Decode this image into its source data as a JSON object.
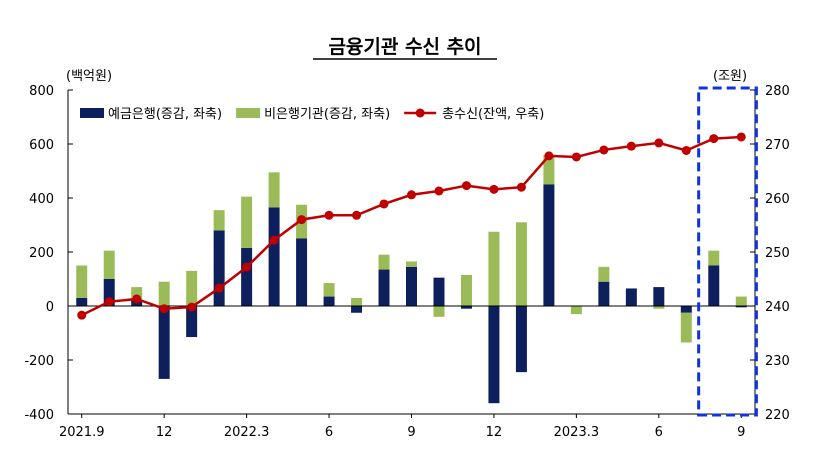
{
  "chart_data": {
    "type": "bar",
    "title": "금융기관 수신 추이",
    "left_axis_unit": "(백억원)",
    "right_axis_unit": "(조원)",
    "left_ylim": [
      -400,
      800
    ],
    "left_yticks": [
      "800",
      "600",
      "400",
      "200",
      "0",
      "-200",
      "-400"
    ],
    "right_ylim": [
      220,
      280
    ],
    "right_yticks": [
      "280",
      "270",
      "260",
      "250",
      "240",
      "230",
      "220"
    ],
    "x_tick_labels": [
      {
        "index": 0,
        "label": "2021.9"
      },
      {
        "index": 3,
        "label": "12"
      },
      {
        "index": 6,
        "label": "2022.3"
      },
      {
        "index": 9,
        "label": "6"
      },
      {
        "index": 12,
        "label": "9"
      },
      {
        "index": 15,
        "label": "12"
      },
      {
        "index": 18,
        "label": "2023.3"
      },
      {
        "index": 21,
        "label": "6"
      },
      {
        "index": 24,
        "label": "9"
      }
    ],
    "legend_position": "top-left",
    "grid": false,
    "highlight": {
      "from_index": 23,
      "to_index": 24,
      "color": "#1133dd"
    },
    "series": [
      {
        "name": "예금은행(증감, 좌축)",
        "type": "bar",
        "axis": "left",
        "color": "#0d1f5c",
        "values": [
          30,
          100,
          20,
          -270,
          -115,
          280,
          215,
          365,
          250,
          35,
          -25,
          135,
          145,
          105,
          -10,
          -360,
          -245,
          450,
          0,
          90,
          65,
          70,
          -25,
          150,
          -5
        ]
      },
      {
        "name": "비은행기관(증감, 좌축)",
        "type": "bar",
        "axis": "left",
        "color": "#9bbb59",
        "values": [
          120,
          105,
          50,
          90,
          130,
          75,
          190,
          130,
          125,
          50,
          30,
          55,
          20,
          -40,
          115,
          275,
          310,
          110,
          -30,
          55,
          0,
          -10,
          -110,
          55,
          35
        ]
      },
      {
        "name": "총수신(잔액, 우축)",
        "type": "line",
        "axis": "right",
        "color": "#c00000",
        "values": [
          238.3,
          240.8,
          241.3,
          239.5,
          239.8,
          243.3,
          247.2,
          252.2,
          256.0,
          256.8,
          256.8,
          258.9,
          260.6,
          261.3,
          262.3,
          261.6,
          262.0,
          267.8,
          267.6,
          268.9,
          269.6,
          270.2,
          268.8,
          271.0,
          271.3
        ]
      }
    ]
  }
}
